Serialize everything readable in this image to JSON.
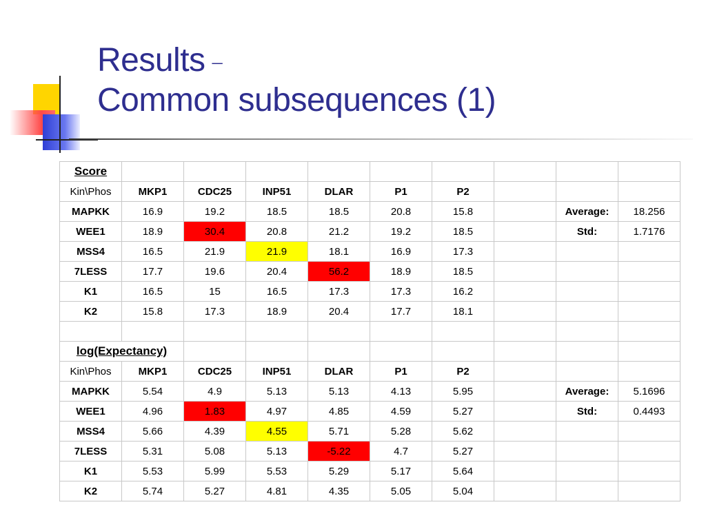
{
  "title": {
    "line1": "Results",
    "dash": "–",
    "line2": "Common subsequences (1)"
  },
  "tables": {
    "score": {
      "section_label": "Score",
      "corner_label": "Kin\\Phos",
      "columns": [
        "MKP1",
        "CDC25",
        "INP51",
        "DLAR",
        "P1",
        "P2"
      ],
      "rows": [
        {
          "label": "MAPKK",
          "values": [
            "16.9",
            "19.2",
            "18.5",
            "18.5",
            "20.8",
            "15.8"
          ],
          "stat_label": "Average:",
          "stat_value": "18.256"
        },
        {
          "label": "WEE1",
          "values": [
            "18.9",
            "30.4",
            "20.8",
            "21.2",
            "19.2",
            "18.5"
          ],
          "stat_label": "Std:",
          "stat_value": "1.7176"
        },
        {
          "label": "MSS4",
          "values": [
            "16.5",
            "21.9",
            "21.9",
            "18.1",
            "16.9",
            "17.3"
          ]
        },
        {
          "label": "7LESS",
          "values": [
            "17.7",
            "19.6",
            "20.4",
            "56.2",
            "18.9",
            "18.5"
          ]
        },
        {
          "label": "K1",
          "values": [
            "16.5",
            "15",
            "16.5",
            "17.3",
            "17.3",
            "16.2"
          ]
        },
        {
          "label": "K2",
          "values": [
            "15.8",
            "17.3",
            "18.9",
            "20.4",
            "17.7",
            "18.1"
          ]
        }
      ]
    },
    "log_expectancy": {
      "section_label": "log(Expectancy)",
      "corner_label": "Kin\\Phos",
      "columns": [
        "MKP1",
        "CDC25",
        "INP51",
        "DLAR",
        "P1",
        "P2"
      ],
      "rows": [
        {
          "label": "MAPKK",
          "values": [
            "5.54",
            "4.9",
            "5.13",
            "5.13",
            "4.13",
            "5.95"
          ],
          "stat_label": "Average:",
          "stat_value": "5.1696"
        },
        {
          "label": "WEE1",
          "values": [
            "4.96",
            "1.83",
            "4.97",
            "4.85",
            "4.59",
            "5.27"
          ],
          "stat_label": "Std:",
          "stat_value": "0.4493"
        },
        {
          "label": "MSS4",
          "values": [
            "5.66",
            "4.39",
            "4.55",
            "5.71",
            "5.28",
            "5.62"
          ]
        },
        {
          "label": "7LESS",
          "values": [
            "5.31",
            "5.08",
            "5.13",
            "-5.22",
            "4.7",
            "5.27"
          ]
        },
        {
          "label": "K1",
          "values": [
            "5.53",
            "5.99",
            "5.53",
            "5.29",
            "5.17",
            "5.64"
          ]
        },
        {
          "label": "K2",
          "values": [
            "5.74",
            "5.27",
            "4.81",
            "4.35",
            "5.05",
            "5.04"
          ]
        }
      ]
    }
  },
  "highlights": {
    "red": "#ff0000",
    "yellow": "#ffff00",
    "title_color": "#2e2e8f"
  }
}
